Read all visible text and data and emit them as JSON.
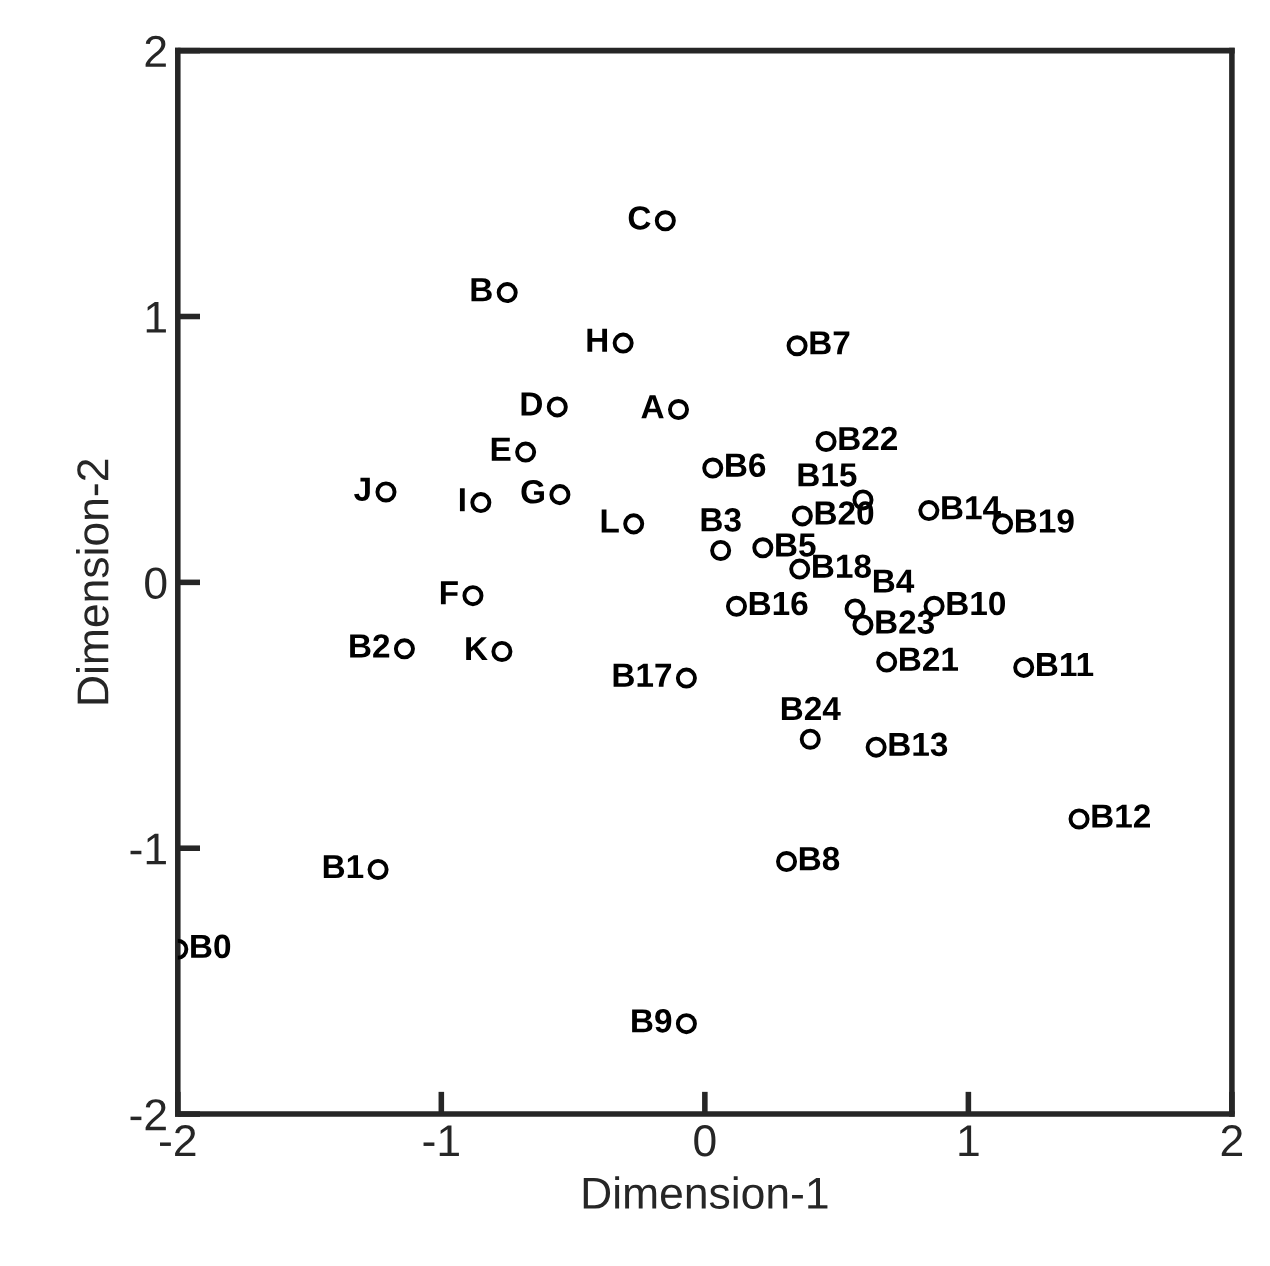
{
  "chart_data": {
    "type": "scatter",
    "xlabel": "Dimension-1",
    "ylabel": "Dimension-2",
    "xlim": [
      -2,
      2
    ],
    "ylim": [
      -2,
      2
    ],
    "xticks": [
      -2,
      -1,
      0,
      1,
      2
    ],
    "yticks": [
      -2,
      -1,
      0,
      1,
      2
    ],
    "grid": false,
    "legend": false,
    "marker": "circle",
    "series": [
      {
        "color": "#000000",
        "x": [
          -0.15,
          -0.75,
          -0.31,
          -0.56,
          -0.1,
          -0.68,
          -1.21,
          -0.85,
          -0.55,
          -0.27,
          -0.88,
          -0.77,
          -1.14,
          -0.07,
          -1.24,
          -0.07,
          -2.0,
          0.35,
          0.46,
          0.03,
          0.6,
          0.85,
          1.13,
          0.37,
          0.22,
          0.36,
          0.87,
          0.12,
          0.69,
          1.21,
          0.65,
          1.42,
          0.31,
          0.6,
          0.06,
          0.4,
          0.57
        ],
        "values": [
          1.36,
          1.09,
          0.9,
          0.66,
          0.65,
          0.49,
          0.34,
          0.3,
          0.33,
          0.22,
          -0.05,
          -0.26,
          -0.25,
          -0.36,
          -1.08,
          -1.66,
          -1.38,
          0.89,
          0.53,
          0.43,
          0.31,
          0.27,
          0.22,
          0.25,
          0.13,
          0.05,
          -0.09,
          -0.09,
          -0.3,
          -0.32,
          -0.62,
          -0.89,
          -1.05,
          -0.16,
          0.12,
          -0.59,
          -0.1
        ],
        "value_labels": [
          "C",
          "B",
          "H",
          "D",
          "A",
          "E",
          "J",
          "I",
          "G",
          "L",
          "F",
          "K",
          "B2",
          "B17",
          "B1",
          "B9",
          "B0",
          "B7",
          "B22",
          "B6",
          "B15",
          "B14",
          "B19",
          "B20",
          "B5",
          "B18",
          "B10",
          "B16",
          "B21",
          "B11",
          "B13",
          "B12",
          "B8",
          "B23",
          "B3",
          "B24",
          "B4"
        ]
      }
    ]
  }
}
